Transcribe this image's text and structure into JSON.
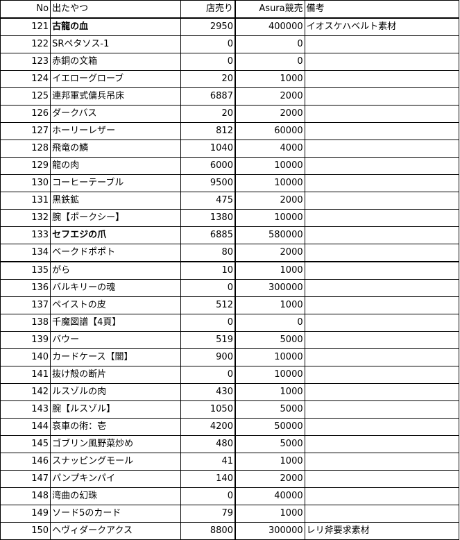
{
  "headers": {
    "no": "No",
    "name": "出たやつ",
    "shop": "店売り",
    "auction": "Asura競売",
    "note": "備考"
  },
  "rows": [
    {
      "no": "121",
      "name": "古龍の血",
      "shop": "2950",
      "auction": "400000",
      "note": "イオスケハベルト素材",
      "bold": true
    },
    {
      "no": "122",
      "name": "SRペタソス-1",
      "shop": "0",
      "auction": "0",
      "note": ""
    },
    {
      "no": "123",
      "name": "赤銅の文箱",
      "shop": "0",
      "auction": "0",
      "note": ""
    },
    {
      "no": "124",
      "name": "イエローグローブ",
      "shop": "20",
      "auction": "1000",
      "note": ""
    },
    {
      "no": "125",
      "name": "連邦軍式傭兵吊床",
      "shop": "6887",
      "auction": "2000",
      "note": ""
    },
    {
      "no": "126",
      "name": "ダークバス",
      "shop": "20",
      "auction": "2000",
      "note": ""
    },
    {
      "no": "127",
      "name": "ホーリーレザー",
      "shop": "812",
      "auction": "60000",
      "note": ""
    },
    {
      "no": "128",
      "name": "飛竜の鱗",
      "shop": "1040",
      "auction": "4000",
      "note": ""
    },
    {
      "no": "129",
      "name": "龍の肉",
      "shop": "6000",
      "auction": "10000",
      "note": ""
    },
    {
      "no": "130",
      "name": "コーヒーテーブル",
      "shop": "9500",
      "auction": "10000",
      "note": ""
    },
    {
      "no": "131",
      "name": "黒鉄鉱",
      "shop": "475",
      "auction": "2000",
      "note": ""
    },
    {
      "no": "132",
      "name": "腕【ポークシー】",
      "shop": "1380",
      "auction": "10000",
      "note": ""
    },
    {
      "no": "133",
      "name": "セフエジの爪",
      "shop": "6885",
      "auction": "580000",
      "note": "",
      "bold": true
    },
    {
      "no": "134",
      "name": "ベークドポポト",
      "shop": "80",
      "auction": "2000",
      "note": "",
      "thick": true
    },
    {
      "no": "135",
      "name": "がら",
      "shop": "10",
      "auction": "1000",
      "note": ""
    },
    {
      "no": "136",
      "name": "バルキリーの魂",
      "shop": "0",
      "auction": "300000",
      "note": ""
    },
    {
      "no": "137",
      "name": "ペイストの皮",
      "shop": "512",
      "auction": "1000",
      "note": ""
    },
    {
      "no": "138",
      "name": "千魔図譜【4頁】",
      "shop": "0",
      "auction": "0",
      "note": ""
    },
    {
      "no": "139",
      "name": "バウー",
      "shop": "519",
      "auction": "5000",
      "note": ""
    },
    {
      "no": "140",
      "name": "カードケース【闇】",
      "shop": "900",
      "auction": "10000",
      "note": ""
    },
    {
      "no": "141",
      "name": "抜け殻の断片",
      "shop": "0",
      "auction": "10000",
      "note": ""
    },
    {
      "no": "142",
      "name": "ルスゾルの肉",
      "shop": "430",
      "auction": "1000",
      "note": ""
    },
    {
      "no": "143",
      "name": "腕【ルスゾル】",
      "shop": "1050",
      "auction": "5000",
      "note": ""
    },
    {
      "no": "144",
      "name": "哀車の術：壱",
      "shop": "4200",
      "auction": "50000",
      "note": ""
    },
    {
      "no": "145",
      "name": "ゴブリン風野菜炒め",
      "shop": "480",
      "auction": "5000",
      "note": ""
    },
    {
      "no": "146",
      "name": "スナッピングモール",
      "shop": "41",
      "auction": "1000",
      "note": ""
    },
    {
      "no": "147",
      "name": "パンプキンパイ",
      "shop": "140",
      "auction": "2000",
      "note": ""
    },
    {
      "no": "148",
      "name": "湾曲の幻珠",
      "shop": "0",
      "auction": "40000",
      "note": ""
    },
    {
      "no": "149",
      "name": "ソード5のカード",
      "shop": "79",
      "auction": "1000",
      "note": ""
    },
    {
      "no": "150",
      "name": "ヘヴィダークアクス",
      "shop": "8800",
      "auction": "300000",
      "note": "レリ斧要求素材"
    }
  ]
}
